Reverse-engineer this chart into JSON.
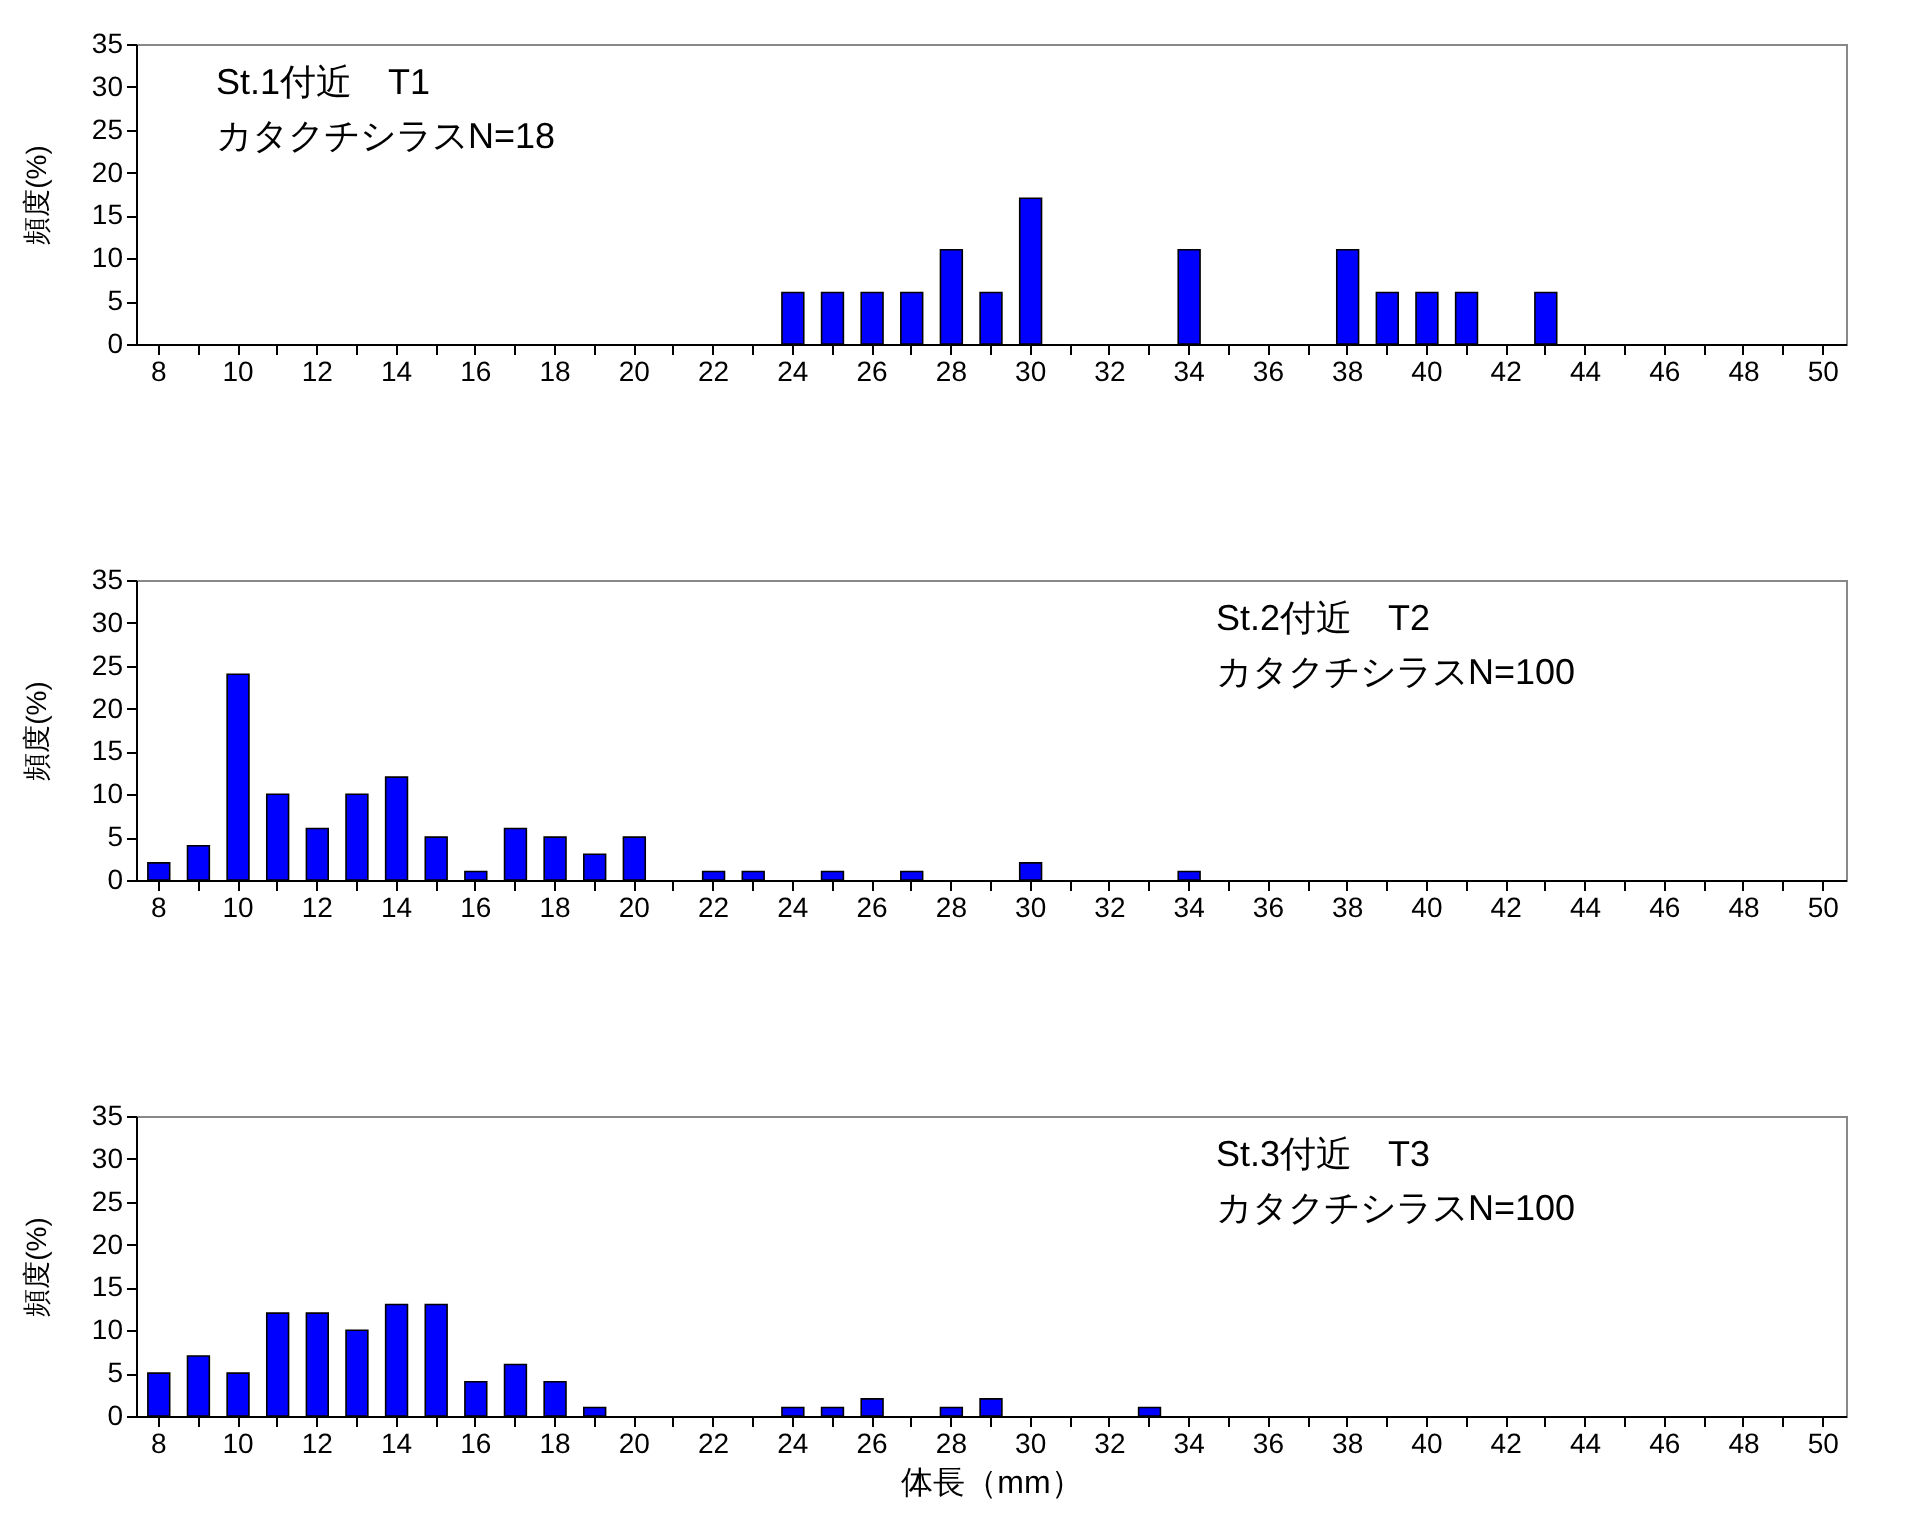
{
  "chart_data": [
    {
      "type": "bar",
      "annotations": [
        "St.1付近　T1",
        "カタクチシラスN=18"
      ],
      "ylabel": "頻度(%)",
      "categories": [
        "8",
        null,
        "10",
        null,
        "12",
        null,
        "14",
        null,
        "16",
        null,
        "18",
        null,
        "20",
        null,
        "22",
        null,
        "24",
        null,
        "26",
        null,
        "28",
        null,
        "30",
        null,
        "32",
        null,
        "34",
        null,
        "36",
        null,
        "38",
        null,
        "40",
        null,
        "42",
        null,
        "44",
        null,
        "46",
        null,
        "48",
        null,
        "50"
      ],
      "values": [
        0,
        0,
        0,
        0,
        0,
        0,
        0,
        0,
        0,
        0,
        0,
        0,
        0,
        0,
        0,
        0,
        6,
        6,
        6,
        6,
        11,
        6,
        17,
        0,
        0,
        0,
        11,
        0,
        0,
        0,
        11,
        6,
        6,
        6,
        0,
        6,
        0,
        0,
        0,
        0,
        0,
        0,
        0
      ],
      "color": "#0000ff",
      "ylim": [
        0,
        35
      ],
      "yticks": [
        0,
        5,
        10,
        15,
        20,
        25,
        30,
        35
      ],
      "grid": false
    },
    {
      "type": "bar",
      "annotations": [
        "St.2付近　T2",
        "カタクチシラスN=100"
      ],
      "ylabel": "頻度(%)",
      "categories": [
        "8",
        null,
        "10",
        null,
        "12",
        null,
        "14",
        null,
        "16",
        null,
        "18",
        null,
        "20",
        null,
        "22",
        null,
        "24",
        null,
        "26",
        null,
        "28",
        null,
        "30",
        null,
        "32",
        null,
        "34",
        null,
        "36",
        null,
        "38",
        null,
        "40",
        null,
        "42",
        null,
        "44",
        null,
        "46",
        null,
        "48",
        null,
        "50"
      ],
      "values": [
        2,
        4,
        24,
        10,
        6,
        10,
        12,
        5,
        1,
        6,
        5,
        3,
        5,
        0,
        1,
        1,
        0,
        1,
        0,
        1,
        0,
        0,
        2,
        0,
        0,
        0,
        1,
        0,
        0,
        0,
        0,
        0,
        0,
        0,
        0,
        0,
        0,
        0,
        0,
        0,
        0,
        0,
        0
      ],
      "color": "#0000ff",
      "ylim": [
        0,
        35
      ],
      "yticks": [
        0,
        5,
        10,
        15,
        20,
        25,
        30,
        35
      ],
      "grid": false
    },
    {
      "type": "bar",
      "annotations": [
        "St.3付近　T3",
        "カタクチシラスN=100"
      ],
      "ylabel": "頻度(%)",
      "xlabel": "体長（mm）",
      "categories": [
        "8",
        null,
        "10",
        null,
        "12",
        null,
        "14",
        null,
        "16",
        null,
        "18",
        null,
        "20",
        null,
        "22",
        null,
        "24",
        null,
        "26",
        null,
        "28",
        null,
        "30",
        null,
        "32",
        null,
        "34",
        null,
        "36",
        null,
        "38",
        null,
        "40",
        null,
        "42",
        null,
        "44",
        null,
        "46",
        null,
        "48",
        null,
        "50"
      ],
      "values": [
        5,
        7,
        5,
        12,
        12,
        10,
        13,
        13,
        4,
        6,
        4,
        1,
        0,
        0,
        0,
        0,
        1,
        1,
        2,
        0,
        1,
        2,
        0,
        0,
        0,
        1,
        0,
        0,
        0,
        0,
        0,
        0,
        0,
        0,
        0,
        0,
        0,
        0,
        0,
        0,
        0,
        0,
        0
      ],
      "color": "#0000ff",
      "ylim": [
        0,
        35
      ],
      "yticks": [
        0,
        5,
        10,
        15,
        20,
        25,
        30,
        35
      ],
      "grid": false
    }
  ]
}
